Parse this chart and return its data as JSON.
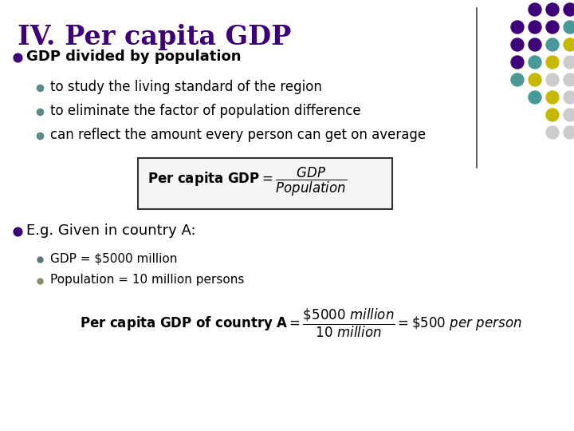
{
  "title": "IV. Per capita GDP",
  "title_color": "#3D007A",
  "title_fontsize": 24,
  "bg_color": "#FFFFFF",
  "bullet1_text": "GDP divided by population",
  "sub_bullets1": [
    "to study the living standard of the region",
    "to eliminate the factor of population difference",
    "can reflect the amount every person can get on average"
  ],
  "bullet2_text": "E.g. Given in country A:",
  "sub_bullets2": [
    "GDP = $5000 million",
    "Population = 10 million persons"
  ],
  "dot_grid": [
    [
      "#3D007A",
      "#3D007A",
      "#3D007A"
    ],
    [
      "#3D007A",
      "#3D007A",
      "#3D007A",
      "#4A9999"
    ],
    [
      "#3D007A",
      "#3D007A",
      "#4A9999",
      "#C9B800"
    ],
    [
      "#3D007A",
      "#4A9999",
      "#C9B800",
      "#CCCCCC"
    ],
    [
      "#4A9999",
      "#C9B800",
      "#CCCCCC",
      "#CCCCCC"
    ],
    [
      "#4A9999",
      "#C9B800",
      "#CCCCCC",
      "#CCCCCC"
    ],
    [
      "#C9B800",
      "#CCCCCC",
      "#CCCCCC"
    ],
    [
      "#CCCCCC",
      "#CCCCCC"
    ]
  ],
  "text_color": "#000000",
  "large_bullet_color": "#3D007A",
  "small_bullet_color": "#5A8A8A"
}
